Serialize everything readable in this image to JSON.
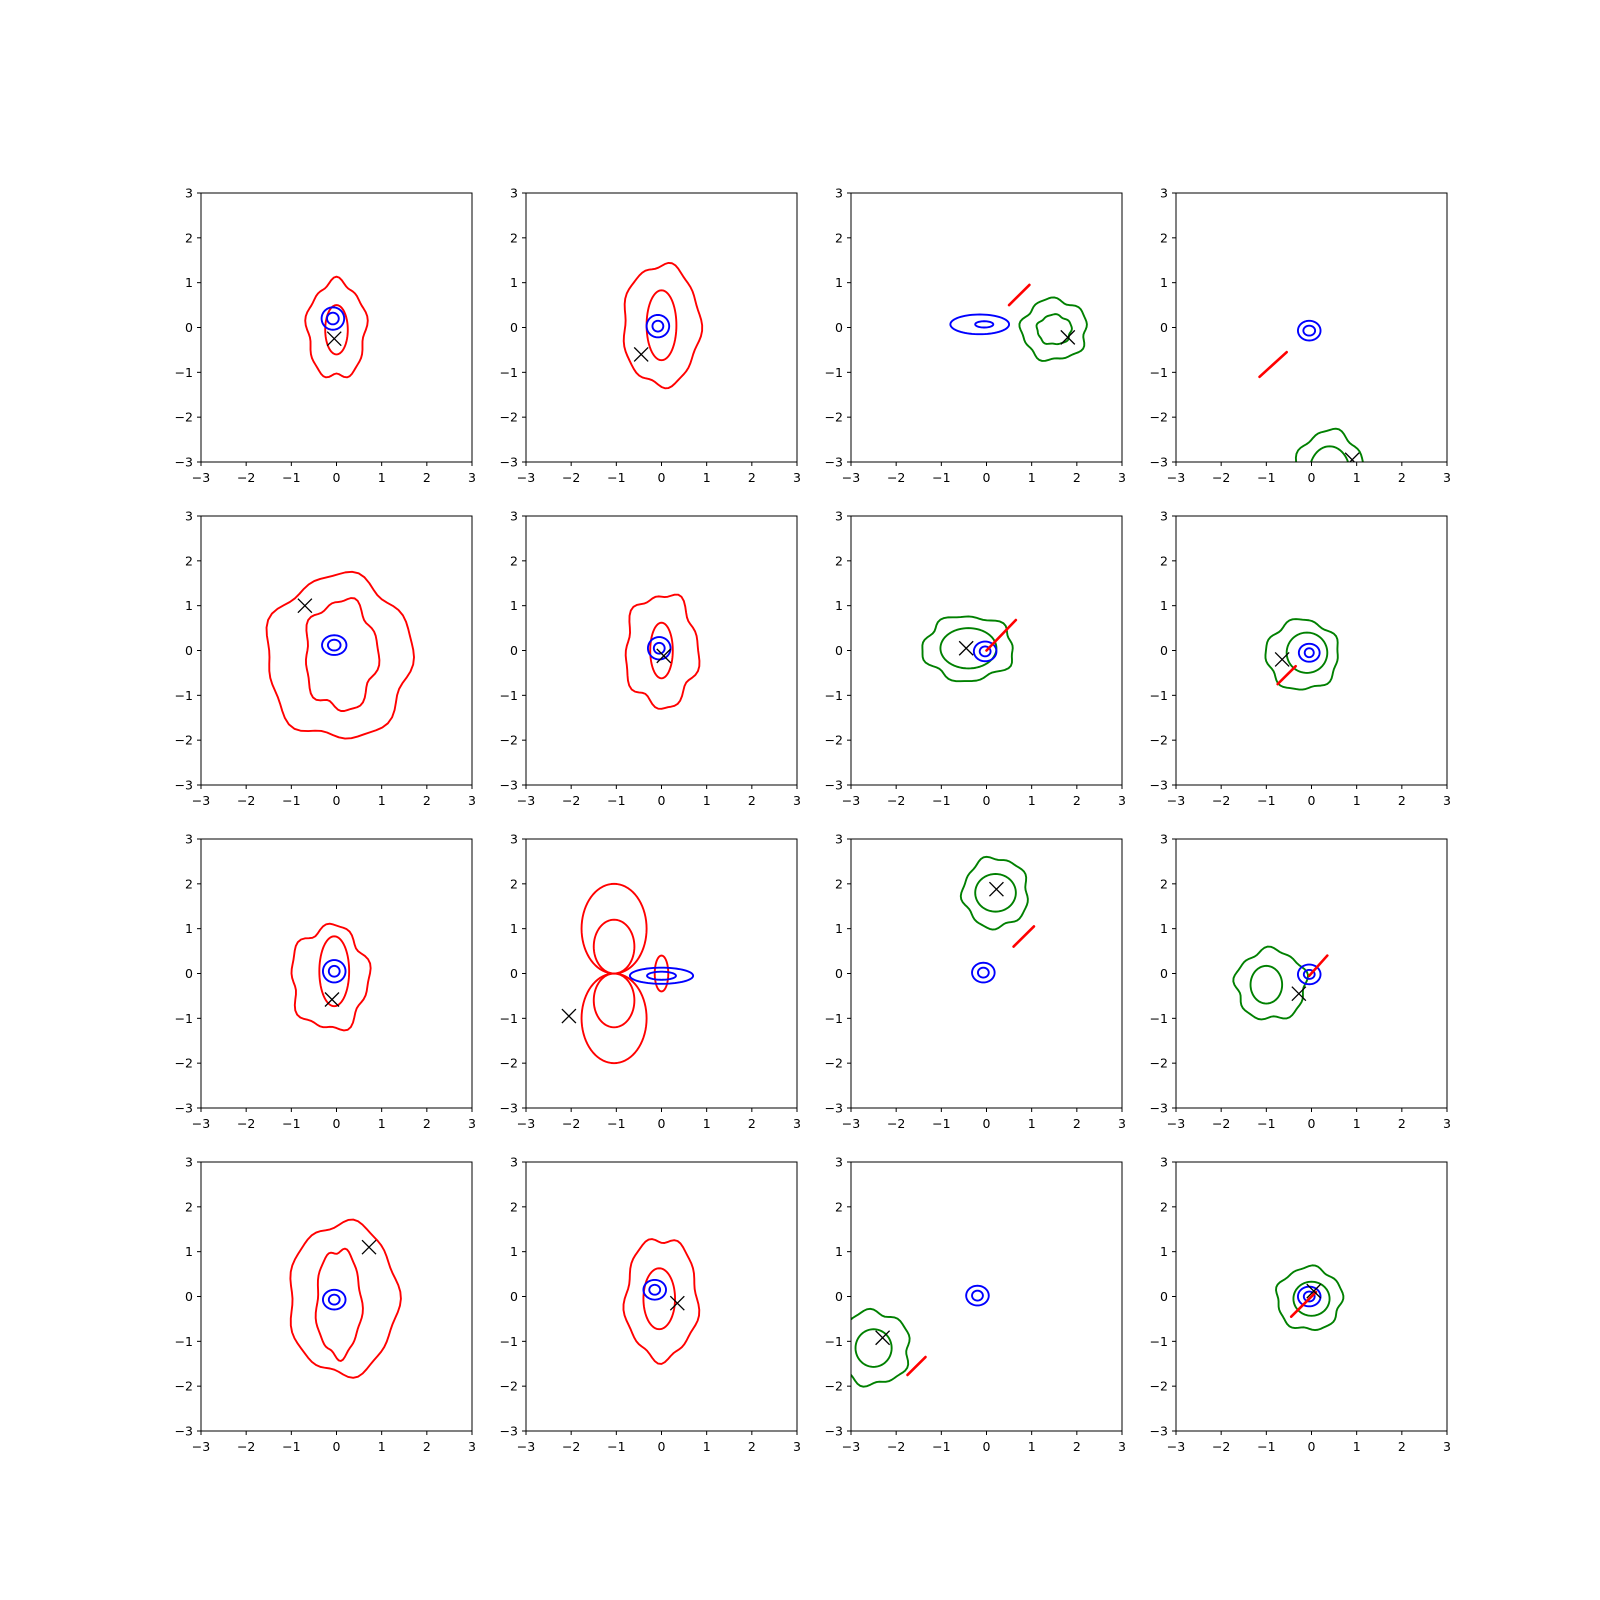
{
  "chart_data": {
    "type": "contour",
    "layout": "4x4 grid of subplots",
    "xlim": [
      -3,
      3
    ],
    "ylim": [
      -3,
      3
    ],
    "x_ticks": [
      "−3",
      "−2",
      "−1",
      "0",
      "1",
      "2",
      "3"
    ],
    "y_ticks": [
      "−3",
      "−2",
      "−1",
      "0",
      "1",
      "2",
      "3"
    ],
    "grid": false,
    "legend": "none",
    "colors": {
      "red": "#ff0000",
      "blue": "#0000ff",
      "green": "#008000",
      "marker": "#000000"
    },
    "panels": [
      {
        "contours": [
          {
            "color": "red",
            "cx": 0,
            "cy": -0.05,
            "rx": 0.65,
            "ry": 1.08,
            "wobble": 0.06
          },
          {
            "color": "red",
            "cx": 0,
            "cy": -0.05,
            "rx": 0.25,
            "ry": 0.55
          },
          {
            "color": "blue",
            "cx": -0.08,
            "cy": 0.2,
            "rx": 0.25,
            "ry": 0.25
          },
          {
            "color": "blue",
            "cx": -0.08,
            "cy": 0.2,
            "rx": 0.13,
            "ry": 0.13
          }
        ],
        "marker": [
          -0.05,
          -0.25
        ]
      },
      {
        "contours": [
          {
            "color": "red",
            "cx": 0,
            "cy": 0.05,
            "rx": 0.85,
            "ry": 1.35,
            "wobble": 0.04
          },
          {
            "color": "red",
            "cx": 0,
            "cy": 0.05,
            "rx": 0.33,
            "ry": 0.78
          },
          {
            "color": "blue",
            "cx": -0.08,
            "cy": 0.03,
            "rx": 0.25,
            "ry": 0.25
          },
          {
            "color": "blue",
            "cx": -0.08,
            "cy": 0.03,
            "rx": 0.12,
            "ry": 0.12
          }
        ],
        "marker": [
          -0.45,
          -0.6
        ]
      },
      {
        "contours": [
          {
            "color": "blue",
            "cx": -0.15,
            "cy": 0.07,
            "rx": 0.65,
            "ry": 0.22
          },
          {
            "color": "blue",
            "cx": -0.05,
            "cy": 0.07,
            "rx": 0.2,
            "ry": 0.07
          },
          {
            "color": "green",
            "cx": 1.5,
            "cy": -0.05,
            "rx": 0.72,
            "ry": 0.68,
            "wobble": 0.06
          },
          {
            "color": "green",
            "cx": 1.5,
            "cy": -0.05,
            "rx": 0.38,
            "ry": 0.33,
            "wobble": 0.05
          }
        ],
        "segments": [
          [
            0.5,
            0.5,
            0.95,
            0.95
          ]
        ],
        "marker": [
          1.8,
          -0.22
        ]
      },
      {
        "contours": [
          {
            "color": "blue",
            "cx": -0.05,
            "cy": -0.07,
            "rx": 0.25,
            "ry": 0.22
          },
          {
            "color": "blue",
            "cx": -0.05,
            "cy": -0.07,
            "rx": 0.13,
            "ry": 0.11
          },
          {
            "color": "green",
            "cx": 0.4,
            "cy": -3.25,
            "rx": 0.75,
            "ry": 0.95,
            "wobble": 0.05
          },
          {
            "color": "green",
            "cx": 0.4,
            "cy": -3.25,
            "rx": 0.45,
            "ry": 0.6
          }
        ],
        "segments": [
          [
            -1.15,
            -1.1,
            -0.55,
            -0.55
          ]
        ],
        "marker": [
          0.9,
          -2.95
        ]
      },
      {
        "contours": [
          {
            "color": "red",
            "cx": 0.05,
            "cy": -0.15,
            "rx": 1.6,
            "ry": 1.82,
            "wobble": 0.05
          },
          {
            "color": "red",
            "cx": 0.1,
            "cy": -0.1,
            "rx": 0.8,
            "ry": 1.22,
            "wobble": 0.07
          },
          {
            "color": "blue",
            "cx": -0.05,
            "cy": 0.12,
            "rx": 0.27,
            "ry": 0.22
          },
          {
            "color": "blue",
            "cx": -0.05,
            "cy": 0.12,
            "rx": 0.14,
            "ry": 0.12
          }
        ],
        "marker": [
          -0.7,
          1.0
        ]
      },
      {
        "contours": [
          {
            "color": "red",
            "cx": 0,
            "cy": 0,
            "rx": 0.8,
            "ry": 1.25,
            "wobble": 0.07
          },
          {
            "color": "red",
            "cx": 0,
            "cy": 0,
            "rx": 0.25,
            "ry": 0.62
          },
          {
            "color": "blue",
            "cx": -0.05,
            "cy": 0.05,
            "rx": 0.25,
            "ry": 0.25
          },
          {
            "color": "blue",
            "cx": -0.05,
            "cy": 0.05,
            "rx": 0.12,
            "ry": 0.12
          }
        ],
        "marker": [
          0.05,
          -0.12
        ]
      },
      {
        "contours": [
          {
            "color": "green",
            "cx": -0.4,
            "cy": 0.05,
            "rx": 1.0,
            "ry": 0.72,
            "wobble": 0.06
          },
          {
            "color": "green",
            "cx": -0.4,
            "cy": 0.05,
            "rx": 0.62,
            "ry": 0.45
          },
          {
            "color": "blue",
            "cx": -0.03,
            "cy": -0.02,
            "rx": 0.25,
            "ry": 0.22
          },
          {
            "color": "blue",
            "cx": -0.03,
            "cy": -0.02,
            "rx": 0.12,
            "ry": 0.11
          }
        ],
        "segments": [
          [
            0.0,
            0.0,
            0.65,
            0.68
          ]
        ],
        "marker": [
          -0.45,
          0.05
        ]
      },
      {
        "contours": [
          {
            "color": "green",
            "cx": -0.2,
            "cy": -0.1,
            "rx": 0.8,
            "ry": 0.78,
            "wobble": 0.05
          },
          {
            "color": "green",
            "cx": -0.1,
            "cy": -0.05,
            "rx": 0.45,
            "ry": 0.45
          },
          {
            "color": "blue",
            "cx": -0.05,
            "cy": -0.05,
            "rx": 0.23,
            "ry": 0.2
          },
          {
            "color": "blue",
            "cx": -0.05,
            "cy": -0.05,
            "rx": 0.1,
            "ry": 0.1
          }
        ],
        "segments": [
          [
            -0.75,
            -0.75,
            -0.35,
            -0.35
          ]
        ],
        "marker": [
          -0.65,
          -0.2
        ]
      },
      {
        "contours": [
          {
            "color": "red",
            "cx": -0.15,
            "cy": -0.1,
            "rx": 0.85,
            "ry": 1.15,
            "wobble": 0.07
          },
          {
            "color": "red",
            "cx": -0.05,
            "cy": 0.05,
            "rx": 0.33,
            "ry": 0.78
          },
          {
            "color": "blue",
            "cx": -0.05,
            "cy": 0.05,
            "rx": 0.25,
            "ry": 0.25
          },
          {
            "color": "blue",
            "cx": -0.05,
            "cy": 0.05,
            "rx": 0.12,
            "ry": 0.12
          }
        ],
        "marker": [
          -0.1,
          -0.58
        ]
      },
      {
        "contours": [
          {
            "color": "red",
            "cx": -1.05,
            "cy": 1.0,
            "rx": 0.72,
            "ry": 1.0
          },
          {
            "color": "red",
            "cx": -1.05,
            "cy": -1.0,
            "rx": 0.72,
            "ry": 1.0
          },
          {
            "color": "red",
            "cx": -1.05,
            "cy": 0.6,
            "rx": 0.45,
            "ry": 0.6
          },
          {
            "color": "red",
            "cx": -1.05,
            "cy": -0.6,
            "rx": 0.45,
            "ry": 0.6
          },
          {
            "color": "red",
            "cx": 0,
            "cy": 0,
            "rx": 0.15,
            "ry": 0.4
          },
          {
            "color": "blue",
            "cx": 0,
            "cy": -0.05,
            "rx": 0.7,
            "ry": 0.18
          },
          {
            "color": "blue",
            "cx": 0,
            "cy": -0.05,
            "rx": 0.32,
            "ry": 0.09
          }
        ],
        "marker": [
          -2.05,
          -0.95
        ]
      },
      {
        "contours": [
          {
            "color": "green",
            "cx": 0.2,
            "cy": 1.8,
            "rx": 0.72,
            "ry": 0.78,
            "wobble": 0.05
          },
          {
            "color": "green",
            "cx": 0.2,
            "cy": 1.8,
            "rx": 0.45,
            "ry": 0.42
          },
          {
            "color": "blue",
            "cx": -0.07,
            "cy": 0.02,
            "rx": 0.25,
            "ry": 0.22
          },
          {
            "color": "blue",
            "cx": -0.07,
            "cy": 0.02,
            "rx": 0.12,
            "ry": 0.11
          }
        ],
        "segments": [
          [
            0.6,
            0.6,
            1.05,
            1.05
          ]
        ],
        "marker": [
          0.22,
          1.88
        ]
      },
      {
        "contours": [
          {
            "color": "green",
            "cx": -0.9,
            "cy": -0.25,
            "rx": 0.78,
            "ry": 0.78,
            "wobble": 0.06
          },
          {
            "color": "green",
            "cx": -1.0,
            "cy": -0.25,
            "rx": 0.35,
            "ry": 0.42
          },
          {
            "color": "blue",
            "cx": -0.05,
            "cy": -0.02,
            "rx": 0.25,
            "ry": 0.22
          },
          {
            "color": "blue",
            "cx": -0.05,
            "cy": -0.02,
            "rx": 0.12,
            "ry": 0.1
          }
        ],
        "segments": [
          [
            -0.05,
            -0.05,
            0.35,
            0.4
          ]
        ],
        "marker": [
          -0.28,
          -0.45
        ]
      },
      {
        "contours": [
          {
            "color": "red",
            "cx": 0.15,
            "cy": -0.05,
            "rx": 1.2,
            "ry": 1.7,
            "wobble": 0.04
          },
          {
            "color": "red",
            "cx": 0.05,
            "cy": -0.15,
            "rx": 0.5,
            "ry": 1.2,
            "wobble": 0.05
          },
          {
            "color": "blue",
            "cx": -0.05,
            "cy": -0.07,
            "rx": 0.25,
            "ry": 0.22
          },
          {
            "color": "blue",
            "cx": -0.05,
            "cy": -0.07,
            "rx": 0.12,
            "ry": 0.11
          }
        ],
        "marker": [
          0.72,
          1.1
        ]
      },
      {
        "contours": [
          {
            "color": "red",
            "cx": 0,
            "cy": -0.05,
            "rx": 0.8,
            "ry": 1.35,
            "wobble": 0.05
          },
          {
            "color": "red",
            "cx": -0.05,
            "cy": -0.05,
            "rx": 0.35,
            "ry": 0.68
          },
          {
            "color": "blue",
            "cx": -0.15,
            "cy": 0.15,
            "rx": 0.25,
            "ry": 0.22
          },
          {
            "color": "blue",
            "cx": -0.15,
            "cy": 0.15,
            "rx": 0.12,
            "ry": 0.11
          }
        ],
        "marker": [
          0.35,
          -0.15
        ]
      },
      {
        "contours": [
          {
            "color": "green",
            "cx": -2.5,
            "cy": -1.15,
            "rx": 0.8,
            "ry": 0.82,
            "wobble": 0.06
          },
          {
            "color": "green",
            "cx": -2.5,
            "cy": -1.15,
            "rx": 0.4,
            "ry": 0.42
          },
          {
            "color": "blue",
            "cx": -0.2,
            "cy": 0.02,
            "rx": 0.25,
            "ry": 0.22
          },
          {
            "color": "blue",
            "cx": -0.2,
            "cy": 0.02,
            "rx": 0.12,
            "ry": 0.11
          }
        ],
        "segments": [
          [
            -1.75,
            -1.75,
            -1.35,
            -1.35
          ]
        ],
        "marker": [
          -2.3,
          -0.92
        ]
      },
      {
        "contours": [
          {
            "color": "green",
            "cx": -0.05,
            "cy": -0.05,
            "rx": 0.72,
            "ry": 0.7,
            "wobble": 0.05
          },
          {
            "color": "green",
            "cx": 0,
            "cy": -0.05,
            "rx": 0.4,
            "ry": 0.38
          },
          {
            "color": "blue",
            "cx": -0.05,
            "cy": 0,
            "rx": 0.25,
            "ry": 0.22
          },
          {
            "color": "blue",
            "cx": -0.05,
            "cy": 0,
            "rx": 0.12,
            "ry": 0.11
          }
        ],
        "segments": [
          [
            -0.45,
            -0.45,
            0.1,
            0.1
          ]
        ],
        "marker": [
          0.05,
          0.12
        ]
      }
    ]
  }
}
